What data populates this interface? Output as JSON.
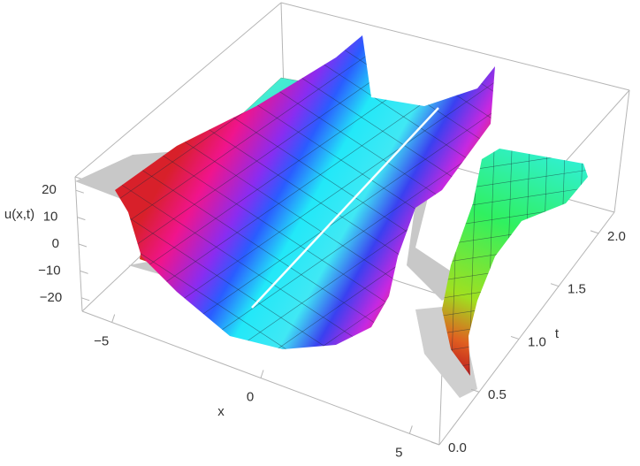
{
  "chart_data": {
    "type": "surface3d",
    "xlabel": "x",
    "ylabel": "t",
    "zlabel": "u(x,t)",
    "xlim": [
      -6,
      6
    ],
    "ylim": [
      0,
      2.2
    ],
    "zlim": [
      -25,
      25
    ],
    "xticks": [
      {
        "value": -5,
        "label": "−5"
      },
      0,
      5
    ],
    "yticks": [
      {
        "value": 0,
        "label": "0.0"
      },
      0.5,
      {
        "value": 1,
        "label": "1.0"
      },
      1.5,
      {
        "value": 2,
        "label": "2.0"
      }
    ],
    "zticks": [
      20,
      10,
      0,
      {
        "value": -10,
        "label": "−10"
      },
      {
        "value": -20,
        "label": "−20"
      }
    ]
  }
}
